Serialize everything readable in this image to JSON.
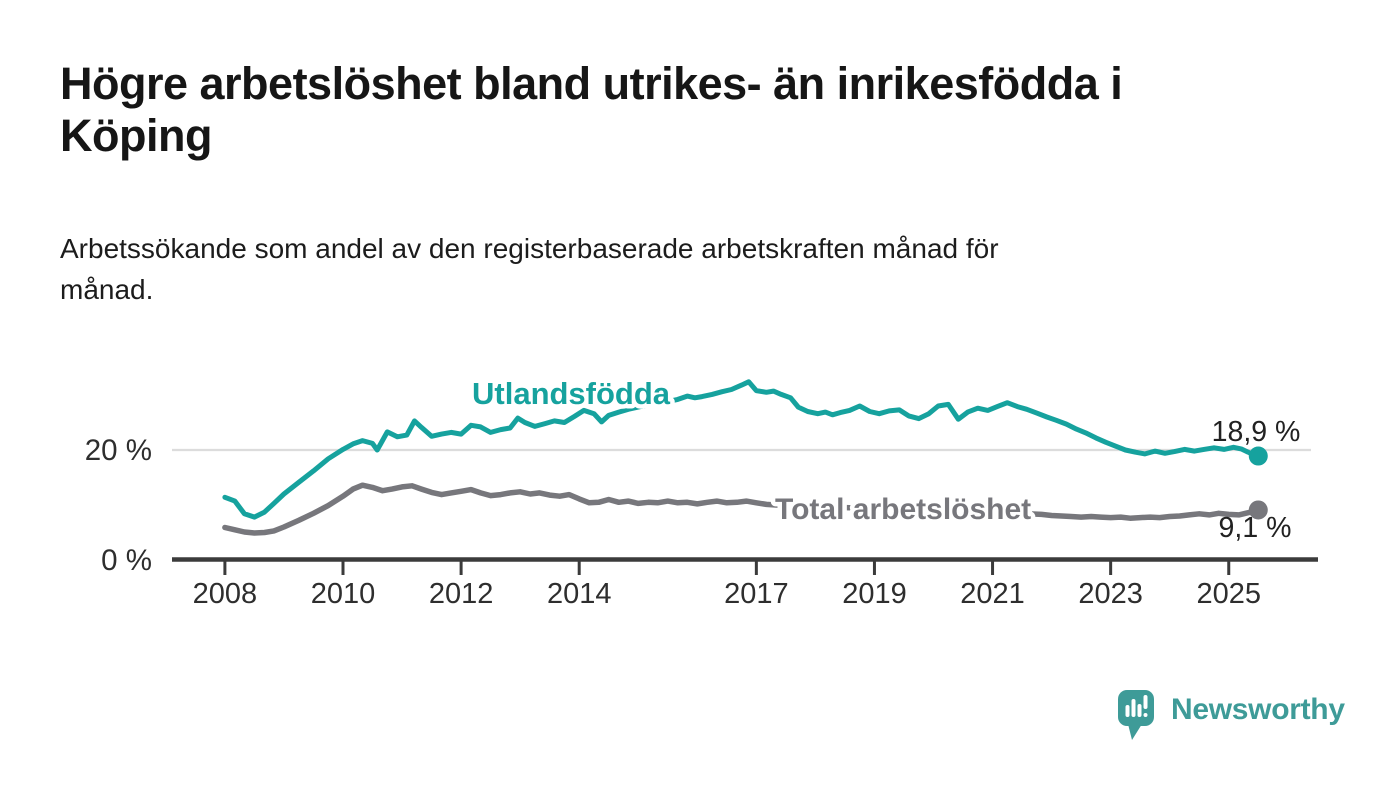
{
  "header": {
    "title_lines": [
      "Högre arbetslöshet bland utrikes- än inrikesfödda i",
      "Köping"
    ],
    "subtitle_lines": [
      "Arbetssökande som andel av den registerbaserade arbetskraften månad för",
      "månad."
    ]
  },
  "chart_data": {
    "type": "line",
    "title": "Högre arbetslöshet bland utrikes- än inrikesfödda i Köping",
    "subtitle": "Arbetssökande som andel av den registerbaserade arbetskraften månad för månad.",
    "unit": "%",
    "x_axis": {
      "ticks": [
        2008,
        2010,
        2012,
        2014,
        2017,
        2019,
        2021,
        2023,
        2025
      ],
      "range": [
        2007.1,
        2026.5
      ]
    },
    "y_axis": {
      "ticks": [
        {
          "value": 20,
          "label": "20 %"
        },
        {
          "value": 0,
          "label": "0 %"
        }
      ],
      "range": [
        0,
        36
      ],
      "grid_at": [
        20
      ]
    },
    "colors": {
      "grid": "#dcdcdc",
      "axis": "#3b3b3b",
      "tick_text": "#2e2e2e",
      "value_text": "#222222",
      "background": "#ffffff"
    },
    "series": [
      {
        "name": "Utlandsfödda",
        "color": "#16a29e",
        "end_value": 18.9,
        "end_label": "18,9 %",
        "points": [
          [
            2008.0,
            11.4
          ],
          [
            2008.17,
            10.7
          ],
          [
            2008.33,
            8.4
          ],
          [
            2008.5,
            7.8
          ],
          [
            2008.67,
            8.7
          ],
          [
            2008.83,
            10.3
          ],
          [
            2009.0,
            12.0
          ],
          [
            2009.25,
            14.1
          ],
          [
            2009.5,
            16.2
          ],
          [
            2009.75,
            18.4
          ],
          [
            2010.0,
            20.1
          ],
          [
            2010.17,
            21.1
          ],
          [
            2010.33,
            21.7
          ],
          [
            2010.5,
            21.2
          ],
          [
            2010.58,
            20.0
          ],
          [
            2010.75,
            23.3
          ],
          [
            2010.92,
            22.4
          ],
          [
            2011.08,
            22.7
          ],
          [
            2011.21,
            25.3
          ],
          [
            2011.33,
            24.1
          ],
          [
            2011.5,
            22.5
          ],
          [
            2011.67,
            22.9
          ],
          [
            2011.83,
            23.2
          ],
          [
            2012.0,
            22.9
          ],
          [
            2012.17,
            24.5
          ],
          [
            2012.33,
            24.2
          ],
          [
            2012.5,
            23.2
          ],
          [
            2012.67,
            23.7
          ],
          [
            2012.83,
            24.0
          ],
          [
            2012.96,
            25.8
          ],
          [
            2013.08,
            25.0
          ],
          [
            2013.25,
            24.3
          ],
          [
            2013.42,
            24.8
          ],
          [
            2013.58,
            25.3
          ],
          [
            2013.75,
            25.0
          ],
          [
            2013.92,
            26.1
          ],
          [
            2014.08,
            27.2
          ],
          [
            2014.25,
            26.6
          ],
          [
            2014.38,
            25.1
          ],
          [
            2014.5,
            26.3
          ],
          [
            2014.67,
            26.9
          ],
          [
            2014.83,
            27.4
          ],
          [
            2015.0,
            27.8
          ],
          [
            2015.17,
            28.2
          ],
          [
            2015.33,
            28.5
          ],
          [
            2015.5,
            28.8
          ],
          [
            2015.67,
            29.2
          ],
          [
            2015.83,
            29.8
          ],
          [
            2015.96,
            29.5
          ],
          [
            2016.08,
            29.7
          ],
          [
            2016.25,
            30.1
          ],
          [
            2016.42,
            30.6
          ],
          [
            2016.58,
            31.0
          ],
          [
            2016.75,
            31.8
          ],
          [
            2016.87,
            32.4
          ],
          [
            2017.0,
            30.8
          ],
          [
            2017.17,
            30.5
          ],
          [
            2017.29,
            30.7
          ],
          [
            2017.42,
            30.1
          ],
          [
            2017.58,
            29.5
          ],
          [
            2017.71,
            27.8
          ],
          [
            2017.87,
            27.0
          ],
          [
            2018.04,
            26.6
          ],
          [
            2018.17,
            26.9
          ],
          [
            2018.29,
            26.4
          ],
          [
            2018.42,
            26.8
          ],
          [
            2018.58,
            27.2
          ],
          [
            2018.75,
            28.0
          ],
          [
            2018.92,
            27.0
          ],
          [
            2019.08,
            26.6
          ],
          [
            2019.25,
            27.1
          ],
          [
            2019.42,
            27.3
          ],
          [
            2019.58,
            26.2
          ],
          [
            2019.75,
            25.7
          ],
          [
            2019.92,
            26.6
          ],
          [
            2020.08,
            28.0
          ],
          [
            2020.25,
            28.3
          ],
          [
            2020.42,
            25.6
          ],
          [
            2020.58,
            26.9
          ],
          [
            2020.75,
            27.6
          ],
          [
            2020.92,
            27.2
          ],
          [
            2021.08,
            27.9
          ],
          [
            2021.25,
            28.6
          ],
          [
            2021.42,
            27.9
          ],
          [
            2021.58,
            27.4
          ],
          [
            2021.75,
            26.7
          ],
          [
            2021.92,
            26.0
          ],
          [
            2022.08,
            25.4
          ],
          [
            2022.25,
            24.7
          ],
          [
            2022.42,
            23.8
          ],
          [
            2022.58,
            23.1
          ],
          [
            2022.75,
            22.2
          ],
          [
            2022.92,
            21.4
          ],
          [
            2023.08,
            20.7
          ],
          [
            2023.25,
            20.0
          ],
          [
            2023.42,
            19.6
          ],
          [
            2023.58,
            19.3
          ],
          [
            2023.75,
            19.8
          ],
          [
            2023.92,
            19.4
          ],
          [
            2024.08,
            19.7
          ],
          [
            2024.25,
            20.1
          ],
          [
            2024.42,
            19.8
          ],
          [
            2024.58,
            20.1
          ],
          [
            2024.75,
            20.4
          ],
          [
            2024.92,
            20.1
          ],
          [
            2025.08,
            20.5
          ],
          [
            2025.21,
            20.2
          ],
          [
            2025.33,
            19.6
          ],
          [
            2025.42,
            19.1
          ],
          [
            2025.5,
            18.9
          ]
        ]
      },
      {
        "name": "Total arbetslöshet",
        "color": "#77777c",
        "end_value": 9.1,
        "end_label": "9,1 %",
        "points": [
          [
            2008.0,
            5.9
          ],
          [
            2008.17,
            5.5
          ],
          [
            2008.33,
            5.1
          ],
          [
            2008.5,
            4.9
          ],
          [
            2008.67,
            5.0
          ],
          [
            2008.83,
            5.3
          ],
          [
            2009.0,
            6.0
          ],
          [
            2009.25,
            7.2
          ],
          [
            2009.5,
            8.5
          ],
          [
            2009.75,
            9.9
          ],
          [
            2010.0,
            11.6
          ],
          [
            2010.17,
            12.9
          ],
          [
            2010.33,
            13.6
          ],
          [
            2010.5,
            13.2
          ],
          [
            2010.67,
            12.6
          ],
          [
            2010.83,
            12.9
          ],
          [
            2011.0,
            13.3
          ],
          [
            2011.17,
            13.5
          ],
          [
            2011.33,
            12.9
          ],
          [
            2011.5,
            12.3
          ],
          [
            2011.67,
            11.9
          ],
          [
            2011.83,
            12.2
          ],
          [
            2012.0,
            12.5
          ],
          [
            2012.17,
            12.8
          ],
          [
            2012.33,
            12.2
          ],
          [
            2012.5,
            11.7
          ],
          [
            2012.67,
            11.9
          ],
          [
            2012.83,
            12.2
          ],
          [
            2013.0,
            12.4
          ],
          [
            2013.17,
            12.0
          ],
          [
            2013.33,
            12.2
          ],
          [
            2013.5,
            11.8
          ],
          [
            2013.67,
            11.6
          ],
          [
            2013.83,
            11.9
          ],
          [
            2014.0,
            11.1
          ],
          [
            2014.17,
            10.4
          ],
          [
            2014.33,
            10.5
          ],
          [
            2014.5,
            11.0
          ],
          [
            2014.67,
            10.5
          ],
          [
            2014.83,
            10.7
          ],
          [
            2015.0,
            10.3
          ],
          [
            2015.17,
            10.5
          ],
          [
            2015.33,
            10.4
          ],
          [
            2015.5,
            10.7
          ],
          [
            2015.67,
            10.4
          ],
          [
            2015.83,
            10.5
          ],
          [
            2016.0,
            10.2
          ],
          [
            2016.17,
            10.5
          ],
          [
            2016.33,
            10.7
          ],
          [
            2016.5,
            10.4
          ],
          [
            2016.67,
            10.5
          ],
          [
            2016.83,
            10.7
          ],
          [
            2017.0,
            10.4
          ],
          [
            2017.17,
            10.1
          ],
          [
            2017.33,
            10.0
          ],
          [
            2017.58,
            9.9
          ],
          [
            2017.83,
            9.8
          ],
          [
            2018.08,
            9.7
          ],
          [
            2018.33,
            9.6
          ],
          [
            2018.58,
            9.5
          ],
          [
            2018.83,
            9.4
          ],
          [
            2019.08,
            9.3
          ],
          [
            2019.33,
            9.2
          ],
          [
            2019.58,
            9.1
          ],
          [
            2019.83,
            9.0
          ],
          [
            2020.08,
            8.9
          ],
          [
            2020.33,
            8.9
          ],
          [
            2020.58,
            8.8
          ],
          [
            2020.83,
            8.7
          ],
          [
            2021.08,
            8.6
          ],
          [
            2021.33,
            8.5
          ],
          [
            2021.58,
            8.4
          ],
          [
            2021.83,
            8.3
          ],
          [
            2022.0,
            8.1
          ],
          [
            2022.17,
            8.0
          ],
          [
            2022.33,
            7.9
          ],
          [
            2022.5,
            7.8
          ],
          [
            2022.67,
            7.9
          ],
          [
            2022.83,
            7.8
          ],
          [
            2023.0,
            7.7
          ],
          [
            2023.17,
            7.8
          ],
          [
            2023.33,
            7.6
          ],
          [
            2023.5,
            7.7
          ],
          [
            2023.67,
            7.8
          ],
          [
            2023.83,
            7.7
          ],
          [
            2024.0,
            7.9
          ],
          [
            2024.17,
            8.0
          ],
          [
            2024.33,
            8.2
          ],
          [
            2024.5,
            8.4
          ],
          [
            2024.67,
            8.2
          ],
          [
            2024.83,
            8.5
          ],
          [
            2025.0,
            8.3
          ],
          [
            2025.17,
            8.2
          ],
          [
            2025.33,
            8.6
          ],
          [
            2025.42,
            8.9
          ],
          [
            2025.5,
            9.1
          ]
        ]
      }
    ],
    "legend_position": "inline-labels-on-lines"
  },
  "branding": {
    "logo_text": "Newsworthy",
    "logo_color": "#3e9b98",
    "logo_icon": "speech-bubble-bar-chart-icon"
  }
}
